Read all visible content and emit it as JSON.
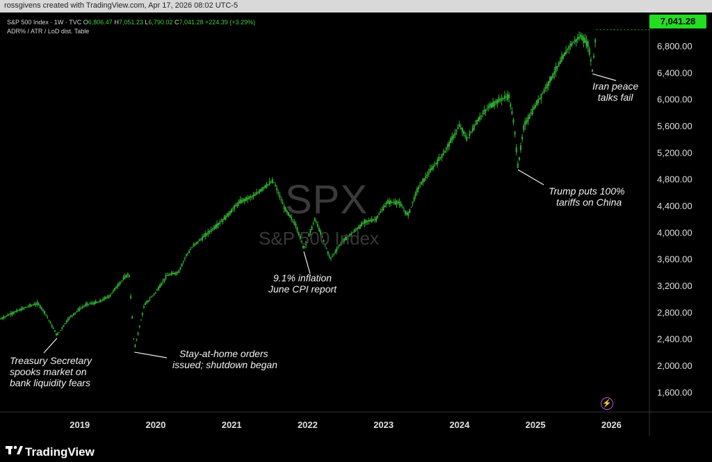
{
  "header": {
    "credit": "rossgivens created with TradingView.com, Apr 17, 2026 08:02 UTC-5"
  },
  "legend": {
    "symbol": "S&P 500 Index · 1W · TVC",
    "o_label": "O",
    "o": "6,806.47",
    "h_label": "H",
    "h": "7,051.23",
    "l_label": "L",
    "l": "6,790.02",
    "c_label": "C",
    "c": "7,041.28",
    "change": "+224.39 (+3.29%)",
    "indicator": "ADR% / ATR / LoD dist. Table"
  },
  "price_tag": "7,041.28",
  "watermark": {
    "symbol": "SPX",
    "name": "S&P 500 Index"
  },
  "annotations": {
    "a2019": [
      "Treasury Secretary",
      "spooks market on",
      "bank liquidity fears"
    ],
    "a2020": [
      "Stay-at-home orders",
      "issued; shutdown began"
    ],
    "a2022": [
      "9.1% inflation",
      "June CPI report"
    ],
    "a2025": [
      "Trump puts 100%",
      "tariffs on China"
    ],
    "a2026": [
      "Iran peace",
      "talks fail"
    ]
  },
  "footer": {
    "brand": "TradingView"
  },
  "colors": {
    "candle": "#2fae2f",
    "price_tag": "#22dd22",
    "background": "#000000"
  },
  "chart_data": {
    "type": "line",
    "title": "S&P 500 Index · 1W · TVC",
    "y_ticks": [
      "6,800.00",
      "6,400.00",
      "6,000.00",
      "5,600.00",
      "5,200.00",
      "4,800.00",
      "4,400.00",
      "4,000.00",
      "3,600.00",
      "3,200.00",
      "2,800.00",
      "2,400.00",
      "2,000.00",
      "1,600.00"
    ],
    "y_tick_values": [
      6800,
      6400,
      6000,
      5600,
      5200,
      4800,
      4400,
      4000,
      3600,
      3200,
      2800,
      2400,
      2000,
      1600
    ],
    "x_ticks": [
      "2019",
      "2020",
      "2021",
      "2022",
      "2023",
      "2024",
      "2025",
      "2026"
    ],
    "x_tick_values": [
      2019,
      2020,
      2021,
      2022,
      2023,
      2024,
      2025,
      2026
    ],
    "ylim": [
      1300,
      7300
    ],
    "xlim": [
      2018.45,
      2027.0
    ],
    "series": [
      {
        "x": [
          2018.46,
          2018.6,
          2018.75,
          2018.85,
          2018.95,
          2019.05,
          2019.2,
          2019.35,
          2019.5,
          2019.6,
          2019.75,
          2019.9,
          2020.0,
          2020.1,
          2020.15,
          2020.22,
          2020.35,
          2020.5,
          2020.65,
          2020.8,
          2020.9,
          2021.0,
          2021.2,
          2021.4,
          2021.6,
          2021.8,
          2021.95,
          2022.05,
          2022.2,
          2022.35,
          2022.45,
          2022.6,
          2022.7,
          2022.8,
          2022.95,
          2023.1,
          2023.25,
          2023.4,
          2023.55,
          2023.7,
          2023.82,
          2023.95,
          2024.1,
          2024.3,
          2024.5,
          2024.6,
          2024.75,
          2024.9,
          2025.05,
          2025.15,
          2025.22,
          2025.27,
          2025.35,
          2025.5,
          2025.65,
          2025.8,
          2025.95,
          2026.1,
          2026.2,
          2026.25,
          2026.3
        ],
        "y": [
          2700,
          2780,
          2850,
          2900,
          2930,
          2780,
          2450,
          2700,
          2850,
          2920,
          2950,
          3050,
          3200,
          3330,
          3380,
          2240,
          2900,
          3100,
          3350,
          3400,
          3650,
          3800,
          4000,
          4200,
          4450,
          4550,
          4700,
          4770,
          4350,
          4100,
          3750,
          4200,
          3900,
          3600,
          3850,
          4000,
          4150,
          4200,
          4450,
          4450,
          4250,
          4650,
          4900,
          5200,
          5600,
          5400,
          5700,
          5900,
          6000,
          6050,
          5600,
          4980,
          5600,
          5900,
          6200,
          6500,
          6800,
          6950,
          6800,
          6420,
          7041
        ]
      }
    ]
  }
}
